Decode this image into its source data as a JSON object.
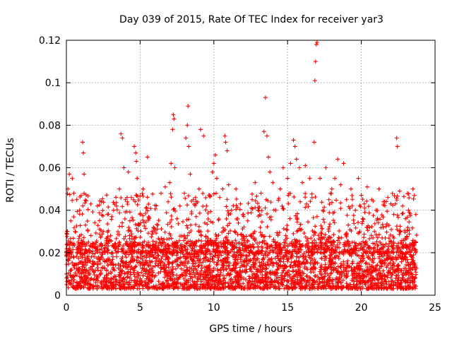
{
  "chart_data": {
    "type": "scatter",
    "title": "Day 039 of 2015, Rate Of TEC Index for receiver yar3",
    "xlabel": "GPS time / hours",
    "ylabel": "ROTI / TECUs",
    "xlim": [
      0,
      25
    ],
    "ylim": [
      0,
      0.12
    ],
    "xticks": [
      0,
      5,
      10,
      15,
      20,
      25
    ],
    "xtick_labels": [
      "0",
      "5",
      "10",
      "15",
      "20",
      "25"
    ],
    "yticks": [
      0,
      0.02,
      0.04,
      0.06,
      0.08,
      0.1,
      0.12
    ],
    "ytick_labels": [
      "0",
      "0.02",
      "0.04",
      "0.06",
      "0.08",
      "0.1",
      "0.12"
    ],
    "grid": true,
    "marker": "+",
    "color": "#ff0000",
    "data_range_hours": [
      0,
      23.75
    ],
    "points": [
      [
        0.0,
        0.01
      ],
      [
        0.1,
        0.05
      ],
      [
        0.2,
        0.057
      ],
      [
        0.3,
        0.035
      ],
      [
        0.4,
        0.055
      ],
      [
        0.5,
        0.048
      ],
      [
        0.6,
        0.03
      ],
      [
        0.7,
        0.045
      ],
      [
        0.8,
        0.025
      ],
      [
        0.9,
        0.04
      ],
      [
        1.0,
        0.047
      ],
      [
        1.1,
        0.072
      ],
      [
        1.15,
        0.067
      ],
      [
        1.2,
        0.057
      ],
      [
        1.3,
        0.033
      ],
      [
        1.5,
        0.025
      ],
      [
        1.7,
        0.018
      ],
      [
        2.0,
        0.022
      ],
      [
        2.1,
        0.042
      ],
      [
        2.3,
        0.015
      ],
      [
        2.5,
        0.03
      ],
      [
        2.8,
        0.02
      ],
      [
        3.0,
        0.028
      ],
      [
        3.2,
        0.04
      ],
      [
        3.4,
        0.042
      ],
      [
        3.6,
        0.05
      ],
      [
        3.7,
        0.076
      ],
      [
        3.8,
        0.074
      ],
      [
        3.9,
        0.06
      ],
      [
        4.0,
        0.045
      ],
      [
        4.2,
        0.058
      ],
      [
        4.4,
        0.046
      ],
      [
        4.6,
        0.07
      ],
      [
        4.7,
        0.067
      ],
      [
        4.75,
        0.063
      ],
      [
        4.8,
        0.055
      ],
      [
        5.0,
        0.038
      ],
      [
        5.2,
        0.05
      ],
      [
        5.4,
        0.041
      ],
      [
        5.5,
        0.065
      ],
      [
        5.6,
        0.036
      ],
      [
        5.8,
        0.03
      ],
      [
        6.0,
        0.02
      ],
      [
        6.2,
        0.033
      ],
      [
        6.5,
        0.025
      ],
      [
        6.7,
        0.051
      ],
      [
        6.9,
        0.044
      ],
      [
        7.0,
        0.053
      ],
      [
        7.1,
        0.062
      ],
      [
        7.2,
        0.078
      ],
      [
        7.25,
        0.085
      ],
      [
        7.3,
        0.083
      ],
      [
        7.35,
        0.06
      ],
      [
        7.5,
        0.036
      ],
      [
        7.7,
        0.042
      ],
      [
        8.0,
        0.048
      ],
      [
        8.1,
        0.074
      ],
      [
        8.2,
        0.08
      ],
      [
        8.25,
        0.089
      ],
      [
        8.3,
        0.07
      ],
      [
        8.4,
        0.057
      ],
      [
        8.6,
        0.045
      ],
      [
        8.8,
        0.037
      ],
      [
        9.0,
        0.05
      ],
      [
        9.1,
        0.078
      ],
      [
        9.3,
        0.075
      ],
      [
        9.5,
        0.042
      ],
      [
        9.7,
        0.047
      ],
      [
        9.9,
        0.058
      ],
      [
        10.0,
        0.062
      ],
      [
        10.1,
        0.066
      ],
      [
        10.2,
        0.055
      ],
      [
        10.4,
        0.046
      ],
      [
        10.6,
        0.05
      ],
      [
        10.75,
        0.075
      ],
      [
        10.8,
        0.072
      ],
      [
        10.9,
        0.068
      ],
      [
        11.0,
        0.052
      ],
      [
        11.2,
        0.04
      ],
      [
        11.5,
        0.05
      ],
      [
        11.8,
        0.043
      ],
      [
        12.0,
        0.038
      ],
      [
        12.3,
        0.035
      ],
      [
        12.6,
        0.045
      ],
      [
        12.8,
        0.053
      ],
      [
        13.0,
        0.04
      ],
      [
        13.2,
        0.048
      ],
      [
        13.4,
        0.077
      ],
      [
        13.5,
        0.093
      ],
      [
        13.6,
        0.075
      ],
      [
        13.7,
        0.065
      ],
      [
        13.8,
        0.058
      ],
      [
        14.0,
        0.053
      ],
      [
        14.2,
        0.04
      ],
      [
        14.5,
        0.05
      ],
      [
        14.7,
        0.06
      ],
      [
        15.0,
        0.055
      ],
      [
        15.2,
        0.062
      ],
      [
        15.4,
        0.073
      ],
      [
        15.5,
        0.07
      ],
      [
        15.6,
        0.064
      ],
      [
        15.8,
        0.06
      ],
      [
        16.0,
        0.053
      ],
      [
        16.2,
        0.061
      ],
      [
        16.5,
        0.055
      ],
      [
        16.8,
        0.072
      ],
      [
        16.85,
        0.101
      ],
      [
        16.9,
        0.11
      ],
      [
        16.95,
        0.118
      ],
      [
        17.0,
        0.119
      ],
      [
        17.2,
        0.055
      ],
      [
        17.4,
        0.04
      ],
      [
        17.6,
        0.06
      ],
      [
        17.8,
        0.045
      ],
      [
        18.0,
        0.05
      ],
      [
        18.2,
        0.055
      ],
      [
        18.4,
        0.064
      ],
      [
        18.6,
        0.052
      ],
      [
        18.8,
        0.062
      ],
      [
        19.0,
        0.045
      ],
      [
        19.3,
        0.05
      ],
      [
        19.6,
        0.04
      ],
      [
        19.8,
        0.055
      ],
      [
        20.0,
        0.047
      ],
      [
        20.2,
        0.043
      ],
      [
        20.4,
        0.051
      ],
      [
        20.7,
        0.045
      ],
      [
        21.0,
        0.04
      ],
      [
        21.2,
        0.05
      ],
      [
        21.5,
        0.044
      ],
      [
        21.8,
        0.046
      ],
      [
        22.0,
        0.043
      ],
      [
        22.2,
        0.038
      ],
      [
        22.4,
        0.074
      ],
      [
        22.45,
        0.07
      ],
      [
        22.6,
        0.049
      ],
      [
        22.8,
        0.042
      ],
      [
        23.0,
        0.036
      ],
      [
        23.2,
        0.04
      ],
      [
        23.5,
        0.05
      ],
      [
        23.6,
        0.047
      ],
      [
        23.7,
        0.038
      ]
    ],
    "dense_band": {
      "min": 0.003,
      "max": 0.025
    }
  }
}
